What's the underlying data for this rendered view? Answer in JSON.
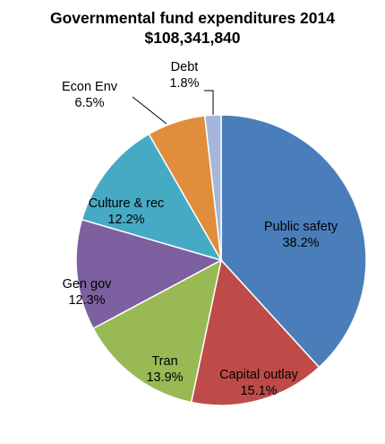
{
  "chart_data": {
    "type": "pie",
    "title": "Governmental fund expenditures 2014",
    "subtitle": "$108,341,840",
    "start_angle_deg": 0,
    "direction": "clockwise",
    "slices": [
      {
        "name": "Public safety",
        "value": 38.2,
        "label": "38.2%",
        "color": "#4A7EBB"
      },
      {
        "name": "Capital outlay",
        "value": 15.1,
        "label": "15.1%",
        "color": "#BE4B48"
      },
      {
        "name": "Tran",
        "value": 13.9,
        "label": "13.9%",
        "color": "#98B954"
      },
      {
        "name": "Gen gov",
        "value": 12.3,
        "label": "12.3%",
        "color": "#7D60A0"
      },
      {
        "name": "Culture & rec",
        "value": 12.2,
        "label": "12.2%",
        "color": "#46AAC5"
      },
      {
        "name": "Econ Env",
        "value": 6.5,
        "label": "6.5%",
        "color": "#E08D3C"
      },
      {
        "name": "Debt",
        "value": 1.8,
        "label": "1.8%",
        "color": "#A5B6DB"
      }
    ]
  }
}
